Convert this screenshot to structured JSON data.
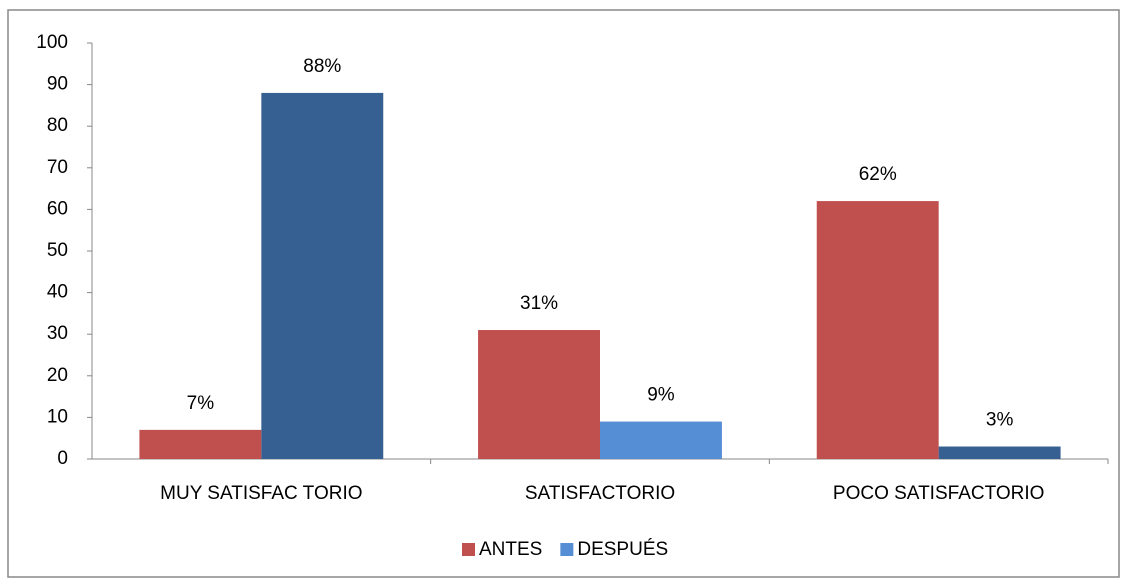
{
  "chart_data": {
    "type": "bar",
    "categories": [
      "MUY SATISFAC TORIO",
      "SATISFACTORIO",
      "POCO SATISFACTORIO"
    ],
    "series": [
      {
        "name": "ANTES",
        "color": "#c0504d",
        "colors": [
          "#c0504d",
          "#c0504d",
          "#c0504d"
        ],
        "values": [
          7,
          31,
          62
        ],
        "value_labels": [
          "7%",
          "31%",
          "62%"
        ]
      },
      {
        "name": "DESPUÉS",
        "color": "#558ed5",
        "colors": [
          "#366092",
          "#558ed5",
          "#366092"
        ],
        "values": [
          88,
          9,
          3
        ],
        "value_labels": [
          "88%",
          "9%",
          "3%"
        ]
      }
    ],
    "ylim": [
      0,
      100
    ],
    "yticks": [
      0,
      10,
      20,
      30,
      40,
      50,
      60,
      70,
      80,
      90,
      100
    ],
    "grid": false,
    "legend": "bottom"
  }
}
